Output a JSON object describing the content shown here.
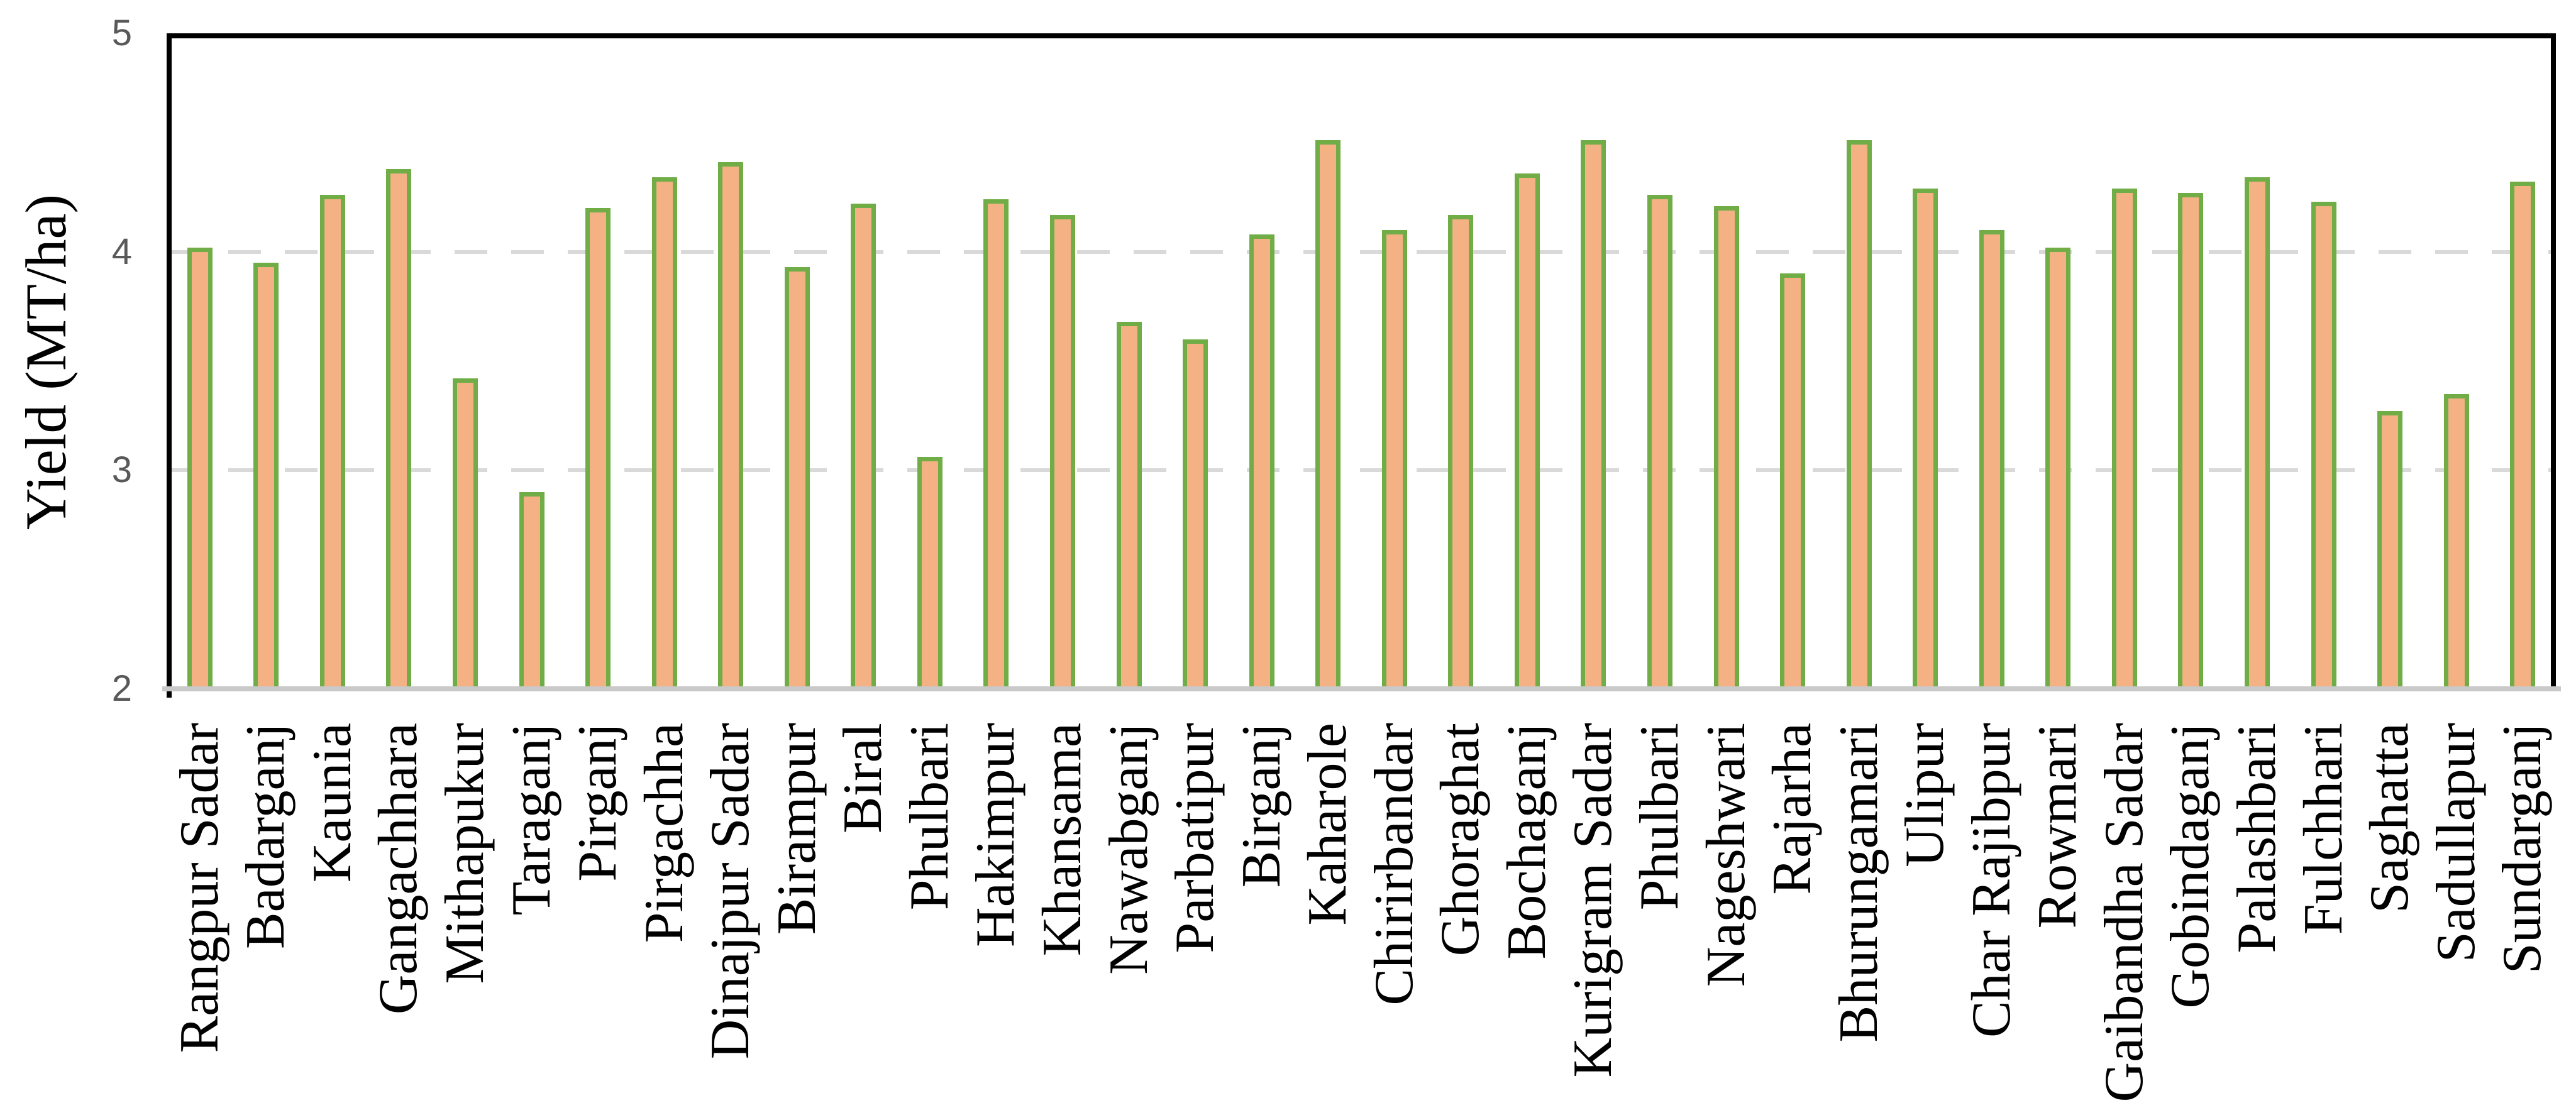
{
  "chart_data": {
    "type": "bar",
    "title": "",
    "xlabel": "",
    "ylabel": "Yield (MT/ha)",
    "ylim": [
      2,
      5
    ],
    "yticks": [
      5,
      4,
      3,
      2
    ],
    "gridline_values": [
      4,
      3
    ],
    "grid": "horizontal-dashed",
    "legend_position": "none",
    "categories": [
      "Rangpur Sadar",
      "Badarganj",
      "Kaunia",
      "Gangachhara",
      "Mithapukur",
      "Taraganj",
      "Pirganj",
      "Pirgachha",
      "Dinajpur Sadar",
      "Birampur",
      "Biral",
      "Phulbari",
      "Hakimpur",
      "Khansama",
      "Nawabganj",
      "Parbatipur",
      "Birganj",
      "Kaharole",
      "Chirirbandar",
      "Ghoraghat",
      "Bochaganj",
      "Kurigram Sadar",
      "Phulbari",
      "Nageshwari",
      "Rajarha",
      "Bhurungamari",
      "Ulipur",
      "Char Rajibpur",
      "Rowmari",
      "Gaibandha Sadar",
      "Gobindaganj",
      "Palashbari",
      "Fulchhari",
      "Saghatta",
      "Sadullapur",
      "Sundarganj"
    ],
    "values": [
      4.02,
      3.95,
      4.26,
      4.38,
      3.42,
      2.9,
      4.2,
      4.34,
      4.41,
      3.93,
      4.22,
      3.06,
      4.24,
      4.17,
      3.68,
      3.6,
      4.08,
      4.51,
      4.1,
      4.17,
      4.36,
      4.51,
      4.26,
      4.21,
      3.9,
      4.51,
      4.29,
      4.1,
      4.02,
      4.29,
      4.27,
      4.34,
      4.23,
      3.27,
      3.35,
      4.32
    ],
    "colors": {
      "bar_fill": "#F4B183",
      "bar_border": "#70AD47",
      "gridline": "#D9D9D9",
      "x_axis_line": "#C9C9C9",
      "plot_border": "#000000",
      "tick_label": "#595959",
      "category_label": "#000000"
    }
  }
}
